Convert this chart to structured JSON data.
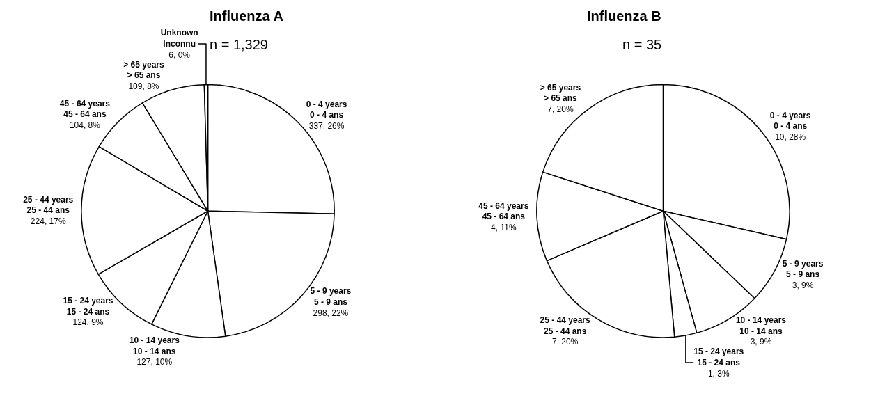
{
  "chart_data": [
    {
      "type": "pie",
      "title": "Influenza A",
      "subtitle": "n = 1,329",
      "categories": [
        "0 - 4 years\n0 - 4 ans",
        "5 - 9 years\n5 - 9 ans",
        "10 - 14 years\n10 - 14 ans",
        "15 - 24 years\n15 - 24 ans",
        "25 - 44 years\n25 - 44 ans",
        "45 - 64 years\n45 - 64 ans",
        "> 65 years\n> 65 ans",
        "Unknown\nInconnu"
      ],
      "values": [
        337,
        298,
        127,
        124,
        224,
        104,
        109,
        6
      ],
      "value_labels": [
        "337, 26%",
        "298, 22%",
        "127, 10%",
        "124, 9%",
        "224, 17%",
        "104, 8%",
        "109, 8%",
        "6, 0%"
      ],
      "colors": [
        "#ffffff",
        "#ffffff",
        "#ffffff",
        "#ffffff",
        "#ffffff",
        "#ffffff",
        "#ffffff",
        "#ffffff"
      ]
    },
    {
      "type": "pie",
      "title": "Influenza B",
      "subtitle": "n = 35",
      "categories": [
        "0 - 4 years\n0 - 4 ans",
        "5 - 9 years\n5 - 9 ans",
        "10 - 14 years\n10 - 14 ans",
        "15 - 24 years\n15 - 24 ans",
        "25 - 44 years\n25 - 44 ans",
        "45 - 64 years\n45 - 64 ans",
        "> 65 years\n> 65 ans"
      ],
      "values": [
        10,
        3,
        3,
        1,
        7,
        4,
        7
      ],
      "value_labels": [
        "10, 28%",
        "3, 9%",
        "3, 9%",
        "1, 3%",
        "7, 20%",
        "4, 11%",
        "7, 20%"
      ],
      "colors": [
        "#ffffff",
        "#ffffff",
        "#ffffff",
        "#ffffff",
        "#ffffff",
        "#ffffff",
        "#ffffff"
      ]
    }
  ]
}
